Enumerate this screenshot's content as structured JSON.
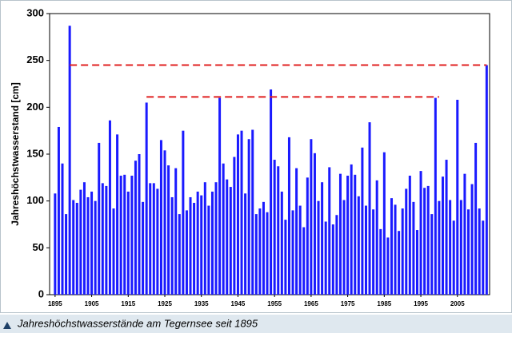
{
  "chart_data": {
    "type": "bar",
    "y_label": "Jahreshöchstwasserstand [cm]",
    "caption": "Jahreshöchstwasserstände am Tegernsee seit 1895",
    "x": [
      1895,
      1896,
      1897,
      1898,
      1899,
      1900,
      1901,
      1902,
      1903,
      1904,
      1905,
      1906,
      1907,
      1908,
      1909,
      1910,
      1911,
      1912,
      1913,
      1914,
      1915,
      1916,
      1917,
      1918,
      1919,
      1920,
      1921,
      1922,
      1923,
      1924,
      1925,
      1926,
      1927,
      1928,
      1929,
      1930,
      1931,
      1932,
      1933,
      1934,
      1935,
      1936,
      1937,
      1938,
      1939,
      1940,
      1941,
      1942,
      1943,
      1944,
      1945,
      1946,
      1947,
      1948,
      1949,
      1950,
      1951,
      1952,
      1953,
      1954,
      1955,
      1956,
      1957,
      1958,
      1959,
      1960,
      1961,
      1962,
      1963,
      1964,
      1965,
      1966,
      1967,
      1968,
      1969,
      1970,
      1971,
      1972,
      1973,
      1974,
      1975,
      1976,
      1977,
      1978,
      1979,
      1980,
      1981,
      1982,
      1983,
      1984,
      1985,
      1986,
      1987,
      1988,
      1989,
      1990,
      1991,
      1992,
      1993,
      1994,
      1995,
      1996,
      1997,
      1998,
      1999,
      2000,
      2001,
      2002,
      2003,
      2004,
      2005,
      2006,
      2007,
      2008,
      2009,
      2010,
      2011,
      2012,
      2013
    ],
    "values": [
      108,
      179,
      140,
      86,
      287,
      101,
      98,
      112,
      120,
      104,
      110,
      100,
      162,
      119,
      116,
      186,
      92,
      171,
      127,
      128,
      110,
      127,
      143,
      150,
      99,
      205,
      119,
      119,
      113,
      165,
      154,
      138,
      104,
      135,
      86,
      175,
      90,
      104,
      98,
      110,
      106,
      120,
      95,
      110,
      120,
      210,
      140,
      123,
      115,
      147,
      171,
      175,
      108,
      166,
      176,
      86,
      92,
      99,
      88,
      219,
      144,
      137,
      110,
      80,
      168,
      90,
      135,
      95,
      72,
      125,
      166,
      151,
      100,
      120,
      78,
      136,
      75,
      85,
      129,
      101,
      127,
      139,
      128,
      105,
      157,
      95,
      184,
      91,
      122,
      70,
      152,
      61,
      103,
      96,
      68,
      92,
      113,
      127,
      99,
      69,
      132,
      114,
      116,
      86,
      210,
      100,
      126,
      144,
      101,
      79,
      208,
      101,
      129,
      91,
      118,
      162,
      92,
      79,
      245
    ],
    "color": "#1a1aff",
    "reference_lines": [
      {
        "value": 245,
        "from": 1899,
        "to": 2013
      },
      {
        "value": 211,
        "from": 1920,
        "to": 2000
      }
    ],
    "reference_color": "#e02020",
    "xlim": [
      1893.5,
      2013.8
    ],
    "xticks": [
      1895,
      1905,
      1915,
      1925,
      1935,
      1945,
      1955,
      1965,
      1975,
      1985,
      1995,
      2005
    ],
    "ylim": [
      0,
      300
    ],
    "yticks": [
      0,
      50,
      100,
      150,
      200,
      250,
      300
    ]
  }
}
